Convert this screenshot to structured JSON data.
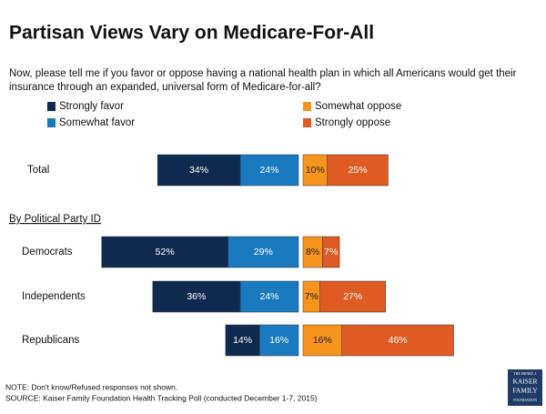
{
  "chart_data": {
    "type": "diverging_bar",
    "title": "Partisan Views Vary on Medicare-For-All",
    "subtitle": "Now, please tell me if you favor or oppose having a national health plan in which all Americans would get their insurance through an expanded, universal form of Medicare-for-all?",
    "group_label": "By Political Party ID",
    "categories": [
      "Total",
      "Democrats",
      "Independents",
      "Republicans"
    ],
    "series": [
      {
        "name": "Strongly favor",
        "color": "#0e2a50",
        "values": [
          34,
          52,
          36,
          14
        ],
        "value_labels": [
          "34%",
          "52%",
          "36%",
          "14%"
        ]
      },
      {
        "name": "Somewhat favor",
        "color": "#1a7ac0",
        "values": [
          24,
          29,
          24,
          16
        ],
        "value_labels": [
          "24%",
          "29%",
          "24%",
          "16%"
        ]
      },
      {
        "name": "Somewhat oppose",
        "color": "#f7941d",
        "values": [
          10,
          8,
          7,
          16
        ],
        "value_labels": [
          "10%",
          "8%",
          "7%",
          "16%"
        ]
      },
      {
        "name": "Strongly oppose",
        "color": "#e05a24",
        "values": [
          25,
          7,
          27,
          46
        ],
        "value_labels": [
          "25%",
          "7%",
          "27%",
          "46%"
        ]
      }
    ],
    "note": "NOTE: Don't know/Refused responses not shown.",
    "source": "SOURCE: Kaiser Family Foundation Health Tracking Poll (conducted December 1-7, 2015)",
    "logo": [
      "THE HENRY J.",
      "KAISER",
      "FAMILY",
      "FOUNDATION"
    ]
  }
}
